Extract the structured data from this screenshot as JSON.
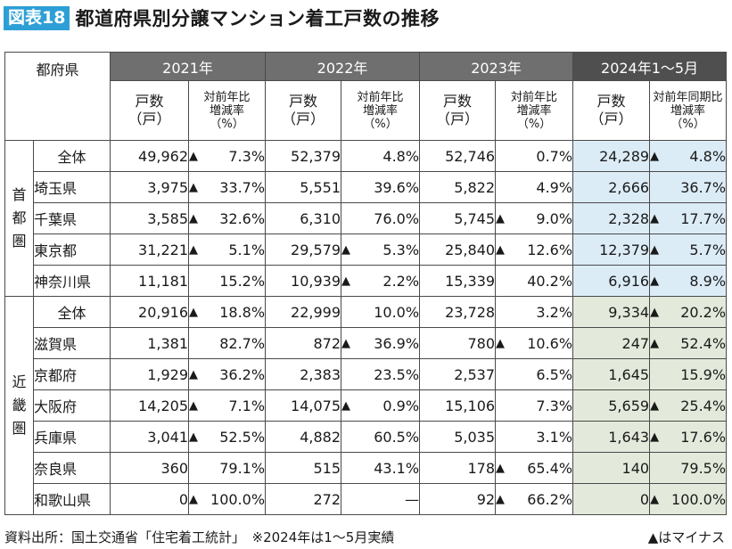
{
  "title": {
    "badge": "図表18",
    "text": "都道府県別分譲マンション着工戸数の推移"
  },
  "table": {
    "corner_label": "都府県",
    "years": [
      "2021年",
      "2022年",
      "2023年",
      "2024年1～5月"
    ],
    "count_header": [
      "戸数",
      "（戸）"
    ],
    "rate_header": [
      "対前年比",
      "増減率",
      "（%）"
    ],
    "rate_header_last": [
      "対前年同期比",
      "増減率",
      "（%）"
    ],
    "region_labels": [
      "首都圏",
      "近畿圏"
    ],
    "decline_marker": "▲",
    "groups": [
      {
        "region": "首都圏",
        "rows": [
          {
            "pref": "全体",
            "c2021": "49,962",
            "r2021": "7.3%",
            "d2021": true,
            "c2022": "52,379",
            "r2022": "4.8%",
            "d2022": false,
            "c2023": "52,746",
            "r2023": "0.7%",
            "d2023": false,
            "c2024": "24,289",
            "r2024": "4.8%",
            "d2024": true
          },
          {
            "pref": "埼玉県",
            "c2021": "3,975",
            "r2021": "33.7%",
            "d2021": true,
            "c2022": "5,551",
            "r2022": "39.6%",
            "d2022": false,
            "c2023": "5,822",
            "r2023": "4.9%",
            "d2023": false,
            "c2024": "2,666",
            "r2024": "36.7%",
            "d2024": false
          },
          {
            "pref": "千葉県",
            "c2021": "3,585",
            "r2021": "32.6%",
            "d2021": true,
            "c2022": "6,310",
            "r2022": "76.0%",
            "d2022": false,
            "c2023": "5,745",
            "r2023": "9.0%",
            "d2023": true,
            "c2024": "2,328",
            "r2024": "17.7%",
            "d2024": true
          },
          {
            "pref": "東京都",
            "c2021": "31,221",
            "r2021": "5.1%",
            "d2021": true,
            "c2022": "29,579",
            "r2022": "5.3%",
            "d2022": true,
            "c2023": "25,840",
            "r2023": "12.6%",
            "d2023": true,
            "c2024": "12,379",
            "r2024": "5.7%",
            "d2024": true
          },
          {
            "pref": "神奈川県",
            "c2021": "11,181",
            "r2021": "15.2%",
            "d2021": false,
            "c2022": "10,939",
            "r2022": "2.2%",
            "d2022": true,
            "c2023": "15,339",
            "r2023": "40.2%",
            "d2023": false,
            "c2024": "6,916",
            "r2024": "8.9%",
            "d2024": true
          }
        ]
      },
      {
        "region": "近畿圏",
        "rows": [
          {
            "pref": "全体",
            "c2021": "20,916",
            "r2021": "18.8%",
            "d2021": true,
            "c2022": "22,999",
            "r2022": "10.0%",
            "d2022": false,
            "c2023": "23,728",
            "r2023": "3.2%",
            "d2023": false,
            "c2024": "9,334",
            "r2024": "20.2%",
            "d2024": true
          },
          {
            "pref": "滋賀県",
            "c2021": "1,381",
            "r2021": "82.7%",
            "d2021": false,
            "c2022": "872",
            "r2022": "36.9%",
            "d2022": true,
            "c2023": "780",
            "r2023": "10.6%",
            "d2023": true,
            "c2024": "247",
            "r2024": "52.4%",
            "d2024": true
          },
          {
            "pref": "京都府",
            "c2021": "1,929",
            "r2021": "36.2%",
            "d2021": true,
            "c2022": "2,383",
            "r2022": "23.5%",
            "d2022": false,
            "c2023": "2,537",
            "r2023": "6.5%",
            "d2023": false,
            "c2024": "1,645",
            "r2024": "15.9%",
            "d2024": false
          },
          {
            "pref": "大阪府",
            "c2021": "14,205",
            "r2021": "7.1%",
            "d2021": true,
            "c2022": "14,075",
            "r2022": "0.9%",
            "d2022": true,
            "c2023": "15,106",
            "r2023": "7.3%",
            "d2023": false,
            "c2024": "5,659",
            "r2024": "25.4%",
            "d2024": true
          },
          {
            "pref": "兵庫県",
            "c2021": "3,041",
            "r2021": "52.5%",
            "d2021": true,
            "c2022": "4,882",
            "r2022": "60.5%",
            "d2022": false,
            "c2023": "5,035",
            "r2023": "3.1%",
            "d2023": false,
            "c2024": "1,643",
            "r2024": "17.6%",
            "d2024": true
          },
          {
            "pref": "奈良県",
            "c2021": "360",
            "r2021": "79.1%",
            "d2021": false,
            "c2022": "515",
            "r2022": "43.1%",
            "d2022": false,
            "c2023": "178",
            "r2023": "65.4%",
            "d2023": true,
            "c2024": "140",
            "r2024": "79.5%",
            "d2024": false
          },
          {
            "pref": "和歌山県",
            "c2021": "0",
            "r2021": "100.0%",
            "d2021": true,
            "c2022": "272",
            "r2022": "—",
            "d2022": false,
            "c2023": "92",
            "r2023": "66.2%",
            "d2023": true,
            "c2024": "0",
            "r2024": "100.0%",
            "d2024": true
          }
        ]
      }
    ]
  },
  "footer": {
    "source": "資料出所：国土交通省「住宅着工統計」　※2024年は1～5月実績",
    "legend": "▲はマイナス"
  },
  "colors": {
    "badge": "#2e9fd6",
    "header_gray": "#6f6f6f",
    "header_dark": "#4f4f4f",
    "highlight_blue": "#dcecf7",
    "highlight_green": "#e3eadb"
  }
}
